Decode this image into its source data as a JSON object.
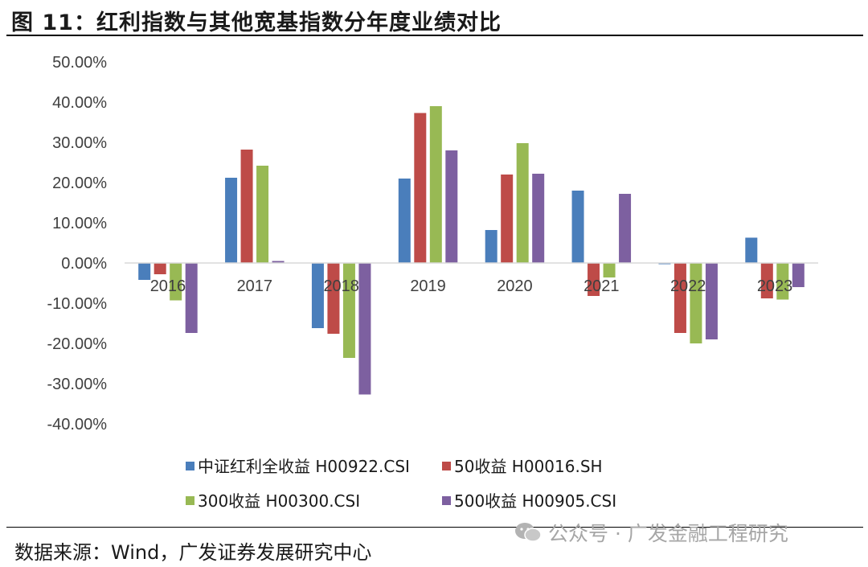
{
  "title": "图 11：红利指数与其他宽基指数分年度业绩对比",
  "source": "数据来源：Wind，广发证券发展研究中心",
  "watermark": {
    "icon": "wechat-icon",
    "text": "公众号 · 广发金融工程研究"
  },
  "chart_data": {
    "type": "bar",
    "categories": [
      "2016",
      "2017",
      "2018",
      "2019",
      "2020",
      "2021",
      "2022",
      "2023"
    ],
    "ylim": [
      -40,
      50
    ],
    "yticks": [
      "50.00%",
      "40.00%",
      "30.00%",
      "20.00%",
      "10.00%",
      "0.00%",
      "-10.00%",
      "-20.00%",
      "-30.00%",
      "-40.00%"
    ],
    "ytick_values": [
      50,
      40,
      30,
      20,
      10,
      0,
      -10,
      -20,
      -30,
      -40
    ],
    "grid": false,
    "legend_position": "bottom",
    "series": [
      {
        "name": "中证红利全收益 H00922.CSI",
        "color": "#4a7ebb",
        "values": [
          -4.2,
          21.2,
          -16.2,
          21.0,
          8.2,
          18.0,
          -0.3,
          6.3
        ]
      },
      {
        "name": "50收益 H00016.SH",
        "color": "#be4b48",
        "values": [
          -2.8,
          28.2,
          -17.6,
          37.3,
          22.0,
          -8.2,
          -17.4,
          -8.8
        ]
      },
      {
        "name": "300收益 H00300.CSI",
        "color": "#98b954",
        "values": [
          -9.3,
          24.2,
          -23.6,
          39.0,
          29.8,
          -3.6,
          -20.0,
          -9.1
        ]
      },
      {
        "name": "500收益 H00905.CSI",
        "color": "#7d60a0",
        "values": [
          -17.4,
          0.5,
          -32.7,
          28.0,
          22.2,
          17.2,
          -19.0,
          -6.0
        ]
      }
    ]
  }
}
